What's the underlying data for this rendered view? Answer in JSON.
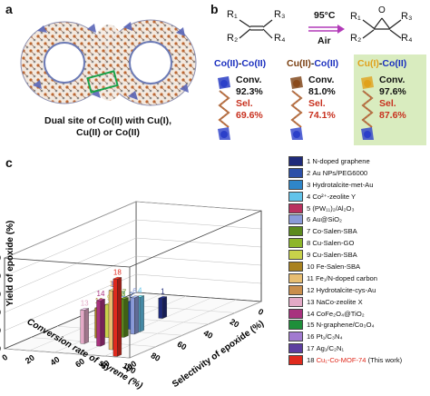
{
  "panel_a": {
    "letter": "a",
    "caption_line1": "Dual site of Co(II) with Cu(I),",
    "caption_line2": "Cu(II) or Co(II)"
  },
  "panel_b": {
    "letter": "b",
    "reaction": {
      "r1": "R₁",
      "r2": "R₂",
      "r3": "R₃",
      "r4": "R₄",
      "condition_top": "95°C",
      "condition_bottom": "Air",
      "epoxide_o": "O"
    },
    "cards": [
      {
        "title_a": "Co(II)",
        "title_sep": "-",
        "title_b": "Co(II)",
        "conv_label": "Conv.",
        "conv_value": "92.3%",
        "sel_label": "Sel.",
        "sel_value": "69.6%",
        "highlight": false,
        "title_a_color": "#1a2fbf",
        "title_b_color": "#1a2fbf"
      },
      {
        "title_a": "Cu(II)",
        "title_sep": "-",
        "title_b": "Co(II)",
        "conv_label": "Conv.",
        "conv_value": "81.0%",
        "sel_label": "Sel.",
        "sel_value": "74.1%",
        "highlight": false,
        "title_a_color": "#7a3f10",
        "title_b_color": "#1a2fbf"
      },
      {
        "title_a": "Cu(I)",
        "title_sep": "-",
        "title_b": "Co(II)",
        "conv_label": "Conv.",
        "conv_value": "97.6%",
        "sel_label": "Sel.",
        "sel_value": "87.6%",
        "highlight": true,
        "title_a_color": "#e0a11b",
        "title_b_color": "#1a2fbf"
      }
    ]
  },
  "panel_c": {
    "letter": "c",
    "axis_labels": {
      "z": "Yield of epoxide (%)",
      "conversion": "Conversion rate of styrene (%)",
      "selectivity": "Selectivity of epoxide (%)"
    },
    "z_ticks": [
      "0",
      "20",
      "40",
      "60",
      "80",
      "100"
    ],
    "conversion_ticks": [
      "0",
      "20",
      "40",
      "60",
      "80",
      "100"
    ],
    "selectivity_ticks": [
      "0",
      "20",
      "40",
      "60",
      "80",
      "100"
    ],
    "legend": [
      {
        "num": "1",
        "label": "N-doped graphene",
        "color": "#1f2a7a"
      },
      {
        "num": "2",
        "label": "Au NPs/PEG6000",
        "color": "#2c4fa8"
      },
      {
        "num": "3",
        "label": "Hydrotalcite-met-Au",
        "color": "#2f86c9"
      },
      {
        "num": "4",
        "label": "Co²⁺-zeolite Y",
        "color": "#62c3ea"
      },
      {
        "num": "5",
        "label": "(PW₁₁)₂/Al₂O₃",
        "color": "#b9315f"
      },
      {
        "num": "6",
        "label": "Au@SiO₂",
        "color": "#8a9ad8"
      },
      {
        "num": "7",
        "label": "Co-Salen-SBA",
        "color": "#5c8a1e"
      },
      {
        "num": "8",
        "label": "Cu-Salen-GO",
        "color": "#8db62a"
      },
      {
        "num": "9",
        "label": "Cu-Salen-SBA",
        "color": "#c8d24a"
      },
      {
        "num": "10",
        "label": "Fe-Salen-SBA",
        "color": "#a98220"
      },
      {
        "num": "11",
        "label": "Fe₁/N-doped carbon",
        "color": "#e8be72"
      },
      {
        "num": "12",
        "label": "Hydrotalcite-cys-Au",
        "color": "#c98e4c"
      },
      {
        "num": "13",
        "label": "NaCo-zeolite X",
        "color": "#e3a9c6"
      },
      {
        "num": "14",
        "label": "CoFe₂O₄@TiO₂",
        "color": "#a8327e"
      },
      {
        "num": "15",
        "label": "N-graphene/Co₃O₄",
        "color": "#1e8f3a"
      },
      {
        "num": "16",
        "label": "Pt₁/C₃N₄",
        "color": "#a17ad0"
      },
      {
        "num": "17",
        "label": "Ag₁/C₂N₁",
        "color": "#5d3ea0"
      },
      {
        "num": "18",
        "label": "Cu₁-Co-MOF-74",
        "suffix": "(This work)",
        "color": "#e02a1d"
      }
    ]
  },
  "chart_data": {
    "type": "bar",
    "subtype": "3d-bar",
    "z_axis_label": "Yield of epoxide (%)",
    "conversion_axis_label": "Conversion rate of styrene (%)",
    "selectivity_axis_label": "Selectivity of epoxide (%)",
    "zlim": [
      0,
      100
    ],
    "conversion_lim": [
      0,
      100
    ],
    "selectivity_lim": [
      0,
      100
    ],
    "grid": true,
    "legend_position": "right",
    "categories": [
      "1",
      "2",
      "3",
      "4",
      "5",
      "6",
      "7",
      "8",
      "9",
      "10",
      "11",
      "12",
      "13",
      "14",
      "15",
      "16",
      "17",
      "18"
    ],
    "series": [
      {
        "name": "Yield of epoxide (%)",
        "values": [
          22,
          30,
          35,
          38,
          28,
          40,
          42,
          38,
          36,
          33,
          65,
          30,
          37,
          50,
          54,
          58,
          63,
          85
        ]
      },
      {
        "name": "Conversion rate of styrene (%)",
        "values": [
          35,
          55,
          62,
          58,
          60,
          62,
          68,
          65,
          70,
          72,
          88,
          62,
          82,
          84,
          80,
          82,
          86,
          97.6
        ]
      },
      {
        "name": "Selectivity of epoxide (%)",
        "values": [
          58,
          54,
          55,
          64,
          48,
          64,
          62,
          58,
          52,
          46,
          74,
          48,
          45,
          60,
          68,
          71,
          73,
          87.6
        ]
      }
    ]
  }
}
